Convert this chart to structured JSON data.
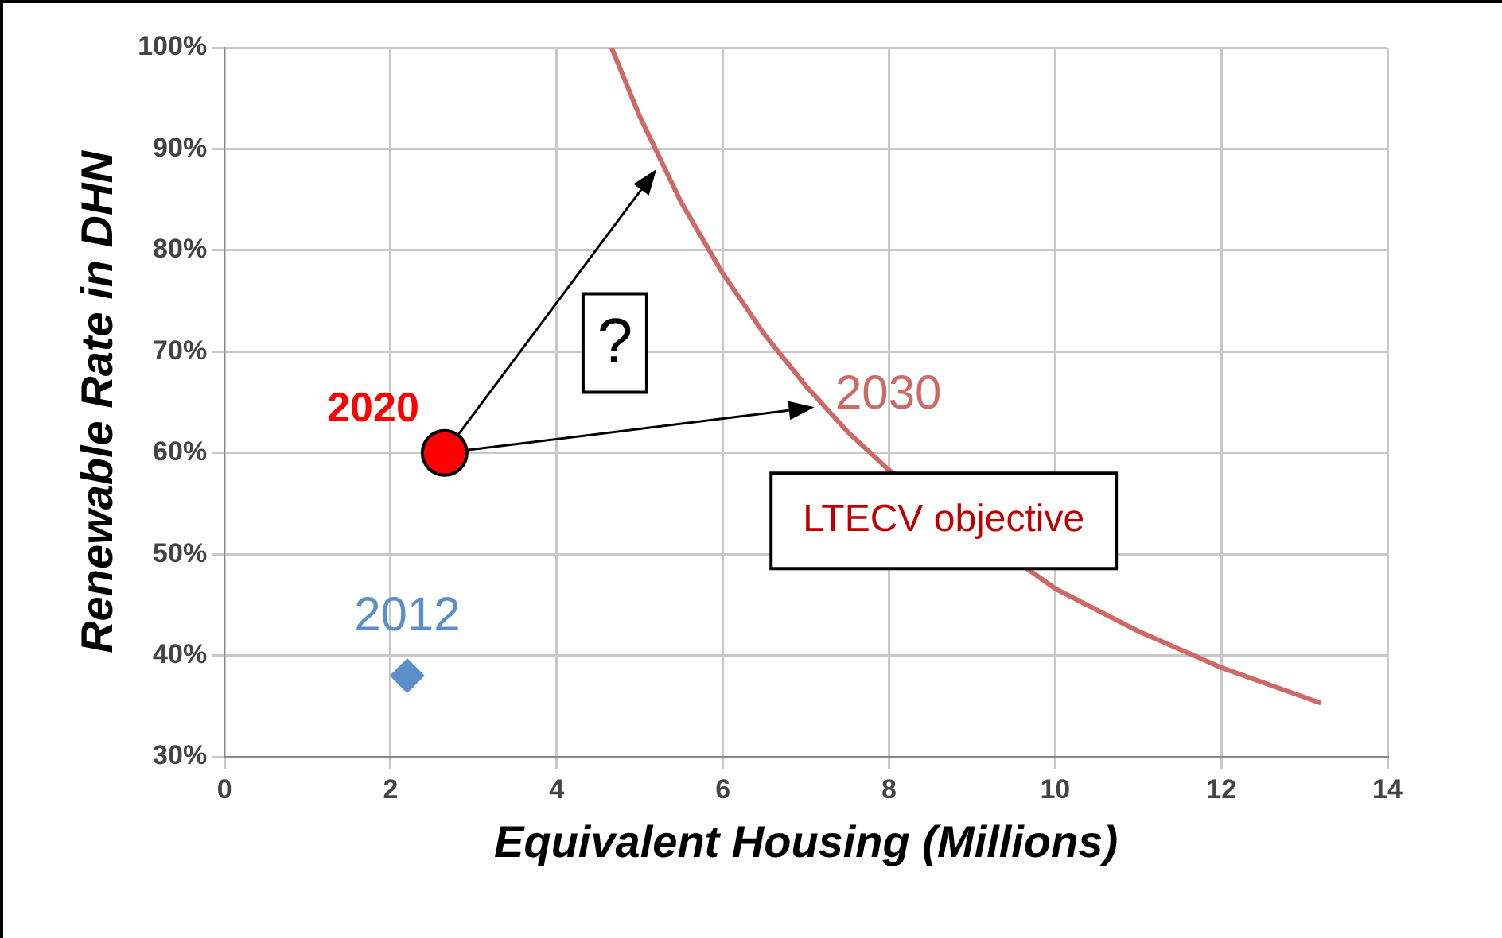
{
  "chart_data": {
    "type": "scatter",
    "xlabel": "Equivalent Housing (Millions)",
    "ylabel": "Renewable Rate in DHN",
    "xlim": [
      0,
      14
    ],
    "xticks": [
      0,
      2,
      4,
      6,
      8,
      10,
      12,
      14
    ],
    "ylim": [
      30,
      100
    ],
    "yticks": [
      {
        "value": 30,
        "label": "30%"
      },
      {
        "value": 40,
        "label": "40%"
      },
      {
        "value": 50,
        "label": "50%"
      },
      {
        "value": 60,
        "label": "60%"
      },
      {
        "value": 70,
        "label": "70%"
      },
      {
        "value": 80,
        "label": "80%"
      },
      {
        "value": 90,
        "label": "90%"
      },
      {
        "value": 100,
        "label": "100%"
      }
    ],
    "grid": true,
    "legend": false,
    "series": [
      {
        "name": "LTECV objective",
        "type": "line",
        "color": "#cd6a66",
        "marker": "none",
        "x": [
          4.66,
          5,
          5.5,
          6,
          6.5,
          7,
          7.5,
          8,
          10,
          11,
          12,
          13.2
        ],
        "values": [
          100,
          93.2,
          84.7,
          77.7,
          71.7,
          66.6,
          62.1,
          58.3,
          46.6,
          42.4,
          38.8,
          35.3
        ]
      },
      {
        "name": "2020",
        "color": "#ff0000",
        "marker": "circle",
        "x": [
          2.65
        ],
        "values": [
          60
        ]
      },
      {
        "name": "2012",
        "color": "#5b8fc9",
        "marker": "diamond",
        "x": [
          2.2
        ],
        "values": [
          38
        ]
      }
    ],
    "annotations": [
      {
        "text": "2030",
        "x": 7.2,
        "y": 64.7
      },
      "?"
    ]
  }
}
